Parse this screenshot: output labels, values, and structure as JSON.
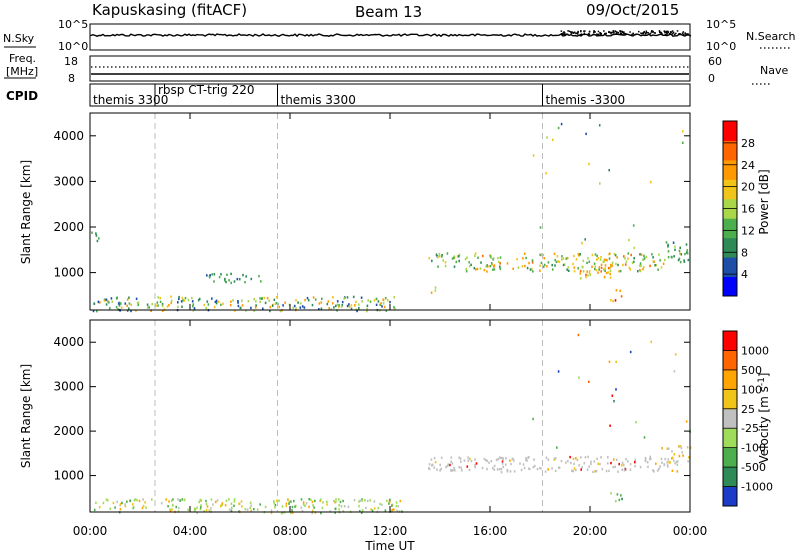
{
  "header": {
    "station": "Kapuskasing (fitACF)",
    "beam": "Beam 13",
    "date": "09/Oct/2015"
  },
  "top_panels": {
    "nsky_label": "N.Sky",
    "nsky_ticks": [
      "10^5",
      "10^0"
    ],
    "nsearch_ticks": [
      "10^5",
      "10^0"
    ],
    "nsearch_label": "N.Search",
    "freq_label_line1": "Freq.",
    "freq_label_line2": "[MHz]",
    "freq_ticks": [
      "18",
      "8"
    ],
    "nave_ticks": [
      "60",
      "0"
    ],
    "nave_label": "Nave",
    "cpid_label": "CPID",
    "cpid_segments": [
      {
        "label": "themis 3300",
        "start_h": 0.0
      },
      {
        "label": "rbsp CT-trig 220",
        "start_h": 2.6
      },
      {
        "label": "themis 3300",
        "start_h": 7.5
      },
      {
        "label": "themis -3300",
        "start_h": 18.1
      }
    ],
    "dashed_markers_h": [
      2.6,
      7.5,
      18.1
    ]
  },
  "chart_data": [
    {
      "type": "heatmap",
      "title": "",
      "xlabel": "Time UT",
      "ylabel": "Slant Range [km]",
      "xlim": [
        0,
        24
      ],
      "ylim": [
        180,
        4500
      ],
      "x_ticks": [
        "00:00",
        "04:00",
        "08:00",
        "12:00",
        "16:00",
        "20:00",
        "00:00"
      ],
      "y_ticks": [
        "1000",
        "2000",
        "3000",
        "4000"
      ],
      "colorbar": {
        "label": "Power [dB]",
        "tick_labels": [
          "28",
          "24",
          "20",
          "16",
          "12",
          "8",
          "4"
        ],
        "range": [
          0,
          30
        ],
        "colors": [
          "#0000ff",
          "#1d4fa8",
          "#2e8b57",
          "#4cae4c",
          "#a8d84a",
          "#f0c419",
          "#ff9900",
          "#ff6600",
          "#ff0000"
        ]
      },
      "echo_regions": [
        {
          "t0": 0.0,
          "t1": 0.35,
          "r0": 1700,
          "r1": 2000,
          "v0": 6,
          "v1": 14
        },
        {
          "t0": 0.1,
          "t1": 12.5,
          "r0": 180,
          "r1": 500,
          "v0": 4,
          "v1": 22
        },
        {
          "t0": 4.5,
          "t1": 6.8,
          "r0": 800,
          "r1": 1000,
          "v0": 6,
          "v1": 12
        },
        {
          "t0": 13.5,
          "t1": 15.0,
          "r0": 1150,
          "r1": 1450,
          "v0": 6,
          "v1": 20
        },
        {
          "t0": 15.0,
          "t1": 23.0,
          "r0": 1050,
          "r1": 1450,
          "v0": 8,
          "v1": 24
        },
        {
          "t0": 23.0,
          "t1": 24.0,
          "r0": 1250,
          "r1": 1700,
          "v0": 6,
          "v1": 14
        },
        {
          "t0": 19.5,
          "t1": 21.2,
          "r0": 900,
          "r1": 1200,
          "v0": 12,
          "v1": 26
        },
        {
          "t0": 20.8,
          "t1": 21.3,
          "r0": 400,
          "r1": 650,
          "v0": 16,
          "v1": 28
        },
        {
          "t0": 13.5,
          "t1": 13.9,
          "r0": 550,
          "r1": 700,
          "v0": 14,
          "v1": 22
        },
        {
          "t0": 17.5,
          "t1": 24.0,
          "r0": 1400,
          "r1": 4400,
          "v0": 4,
          "v1": 20
        }
      ]
    },
    {
      "type": "heatmap",
      "title": "",
      "xlabel": "Time UT",
      "ylabel": "Slant Range [km]",
      "xlim": [
        0,
        24
      ],
      "ylim": [
        180,
        4500
      ],
      "x_ticks": [
        "00:00",
        "04:00",
        "08:00",
        "12:00",
        "16:00",
        "20:00",
        "00:00"
      ],
      "y_ticks": [
        "1000",
        "2000",
        "3000",
        "4000"
      ],
      "colorbar": {
        "label": "Velocity [m s^-1]",
        "tick_labels": [
          "1000",
          "500",
          "100",
          "25",
          "-25",
          "-100",
          "-500",
          "-1000"
        ],
        "colors": [
          "#1a3cc8",
          "#2e8b57",
          "#4cae4c",
          "#9fdc5a",
          "#c0c0c0",
          "#f0c419",
          "#ffa500",
          "#ff6600",
          "#ff0000"
        ]
      },
      "echo_regions": [
        {
          "t0": 0.1,
          "t1": 12.5,
          "r0": 180,
          "r1": 500,
          "class": "mixed-green-yellow"
        },
        {
          "t0": 13.5,
          "t1": 23.5,
          "r0": 1100,
          "r1": 1450,
          "class": "grey"
        },
        {
          "t0": 23.0,
          "t1": 24.0,
          "r0": 1300,
          "r1": 1700,
          "class": "grey-orange"
        },
        {
          "t0": 20.8,
          "t1": 21.3,
          "r0": 400,
          "r1": 650,
          "class": "green"
        },
        {
          "t0": 17.5,
          "t1": 24.0,
          "r0": 1400,
          "r1": 4400,
          "class": "mixed"
        }
      ]
    }
  ]
}
